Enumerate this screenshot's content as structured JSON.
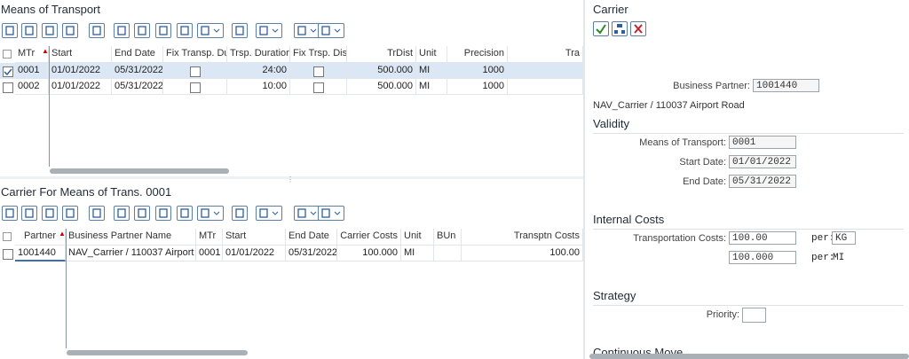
{
  "means_of_transport": {
    "title": "Means of Transport",
    "columns": [
      "MTr",
      "Start",
      "End Date",
      "Fix Transp. Dur.",
      "Trsp. Duration",
      "Fix Trsp. Dist.",
      "TrDist",
      "Unit",
      "Precision",
      "Tra"
    ],
    "rows": [
      {
        "mtr": "0001",
        "start": "01/01/2022",
        "end": "05/31/2022",
        "duration": "24:00",
        "trdist": "500.000",
        "unit": "MI",
        "precision": "1000"
      },
      {
        "mtr": "0002",
        "start": "01/01/2022",
        "end": "05/31/2022",
        "duration": "10:00",
        "trdist": "500.000",
        "unit": "MI",
        "precision": "1000"
      }
    ]
  },
  "carrier_for_means": {
    "title": "Carrier For Means of Trans. 0001",
    "columns": [
      "Partner",
      "Business Partner Name",
      "MTr",
      "Start",
      "End Date",
      "Carrier Costs",
      "Unit",
      "BUn",
      "Transptn Costs"
    ],
    "rows": [
      {
        "partner": "1001440",
        "name": "NAV_Carrier / 110037 Airport Road",
        "mtr": "0001",
        "start": "01/01/2022",
        "end": "05/31/2022",
        "costs": "100.000",
        "unit": "MI",
        "transptn": "100.00"
      }
    ]
  },
  "carrier_panel": {
    "title": "Carrier",
    "business_partner": {
      "label": "Business Partner:",
      "value": "1001440"
    },
    "partner_name": "NAV_Carrier / 110037 Airport Road",
    "validity": {
      "heading": "Validity",
      "means": {
        "label": "Means of Transport:",
        "value": "0001"
      },
      "start": {
        "label": "Start Date:",
        "value": "01/01/2022"
      },
      "end": {
        "label": "End Date:",
        "value": "05/31/2022"
      }
    },
    "internal_costs": {
      "heading": "Internal Costs",
      "transport": {
        "label": "Transportation Costs:",
        "value": "100.00",
        "per_label": "per:",
        "per_value": "KG"
      },
      "second": {
        "value": "100.000",
        "per_label": "per:",
        "per_value": "MI"
      }
    },
    "strategy": {
      "heading": "Strategy",
      "priority_label": "Priority:"
    },
    "continuous_move": "Continuous Move"
  }
}
